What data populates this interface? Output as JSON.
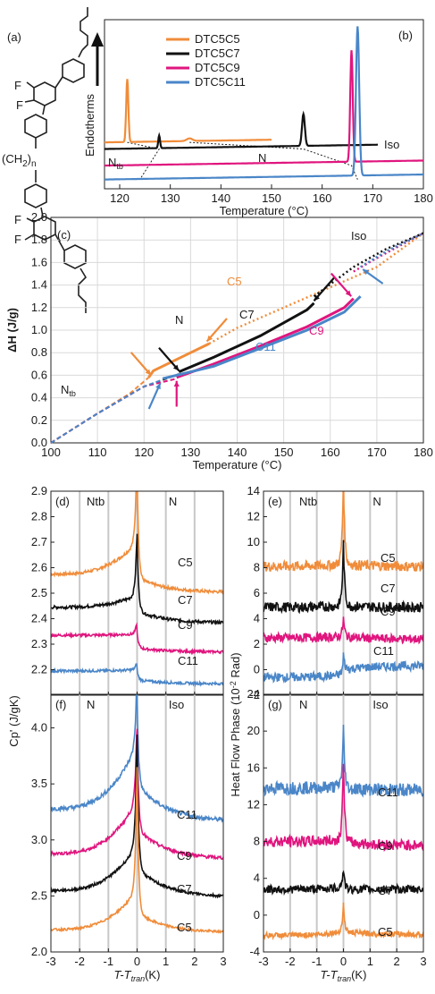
{
  "colors": {
    "C5": "#f08c3a",
    "C7": "#111111",
    "C9": "#e0157e",
    "C11": "#4a86c8",
    "vline": "#c8c8c8"
  },
  "molecule": {
    "label": "(a)",
    "F_top_1": "F",
    "F_top_2": "F",
    "spacer_open": "(CH",
    "spacer_sub": "2",
    "spacer_close": ")",
    "spacer_n": "n",
    "F_bot_1": "F",
    "F_bot_2": "F"
  },
  "chart_data": [
    {
      "id": "b",
      "panel_label": "(b)",
      "type": "line",
      "xlabel": "Temperature (°C)",
      "ylabel": "Endotherms",
      "xlim": [
        117,
        180
      ],
      "xticks": [
        120,
        130,
        140,
        150,
        160,
        170,
        180
      ],
      "legend": {
        "placement": "top-center",
        "entries": [
          "DTC5C5",
          "DTC5C7",
          "DTC5C9",
          "DTC5C11"
        ]
      },
      "annotations": {
        "Iso": "Iso",
        "N": "N",
        "Ntb": "N",
        "Ntb_sub": "tb"
      },
      "series": [
        {
          "name": "DTC5C5",
          "key": "C5",
          "x_range": [
            117,
            150
          ],
          "baseline": 0.7,
          "peaks": [
            [
              121.5,
              0.95,
              0.3
            ],
            [
              133.8,
              0.04,
              0.8
            ]
          ]
        },
        {
          "name": "DTC5C7",
          "key": "C7",
          "x_range": [
            117,
            171
          ],
          "baseline": 0.6,
          "peaks": [
            [
              127.8,
              0.19,
              0.25
            ],
            [
              156.3,
              0.48,
              0.4
            ]
          ]
        },
        {
          "name": "DTC5C9",
          "key": "C9",
          "x_range": [
            117,
            180
          ],
          "baseline": 0.35,
          "peaks": [
            [
              165.8,
              1.68,
              0.35
            ]
          ]
        },
        {
          "name": "DTC5C11",
          "key": "C11",
          "x_range": [
            117,
            180
          ],
          "baseline": 0.14,
          "peaks": [
            [
              167.0,
              2.25,
              0.45
            ]
          ]
        }
      ]
    },
    {
      "id": "c",
      "panel_label": "(c)",
      "type": "line",
      "xlabel": "Temperature (°C)",
      "ylabel": "ΔH (J/g)",
      "xlim": [
        100,
        180
      ],
      "ylim": [
        0,
        2.0
      ],
      "xticks": [
        100,
        110,
        120,
        130,
        140,
        150,
        160,
        170,
        180
      ],
      "yticks": [
        0.0,
        0.2,
        0.4,
        0.6,
        0.8,
        1.0,
        1.2,
        1.4,
        1.6,
        1.8,
        2.0
      ],
      "ytick_labels": [
        "0.0",
        "0.2",
        "0.4",
        "0.6",
        "0.8",
        "1.0",
        "1.2",
        "1.4",
        "1.6",
        "1.8",
        "2.0"
      ],
      "annotations": {
        "Iso": "Iso",
        "N": "N",
        "Ntb": "N",
        "Ntb_sub": "tb",
        "C5": "C5",
        "C7": "C7",
        "C9": "C9",
        "C11": "C11"
      },
      "series": [
        {
          "key": "C5",
          "dashed_x": [
            100,
            110,
            117,
            121
          ],
          "dashed_y": [
            0.0,
            0.26,
            0.44,
            0.58
          ],
          "solid_x": [
            121,
            122,
            126,
            130,
            134
          ],
          "solid_y": [
            0.58,
            0.64,
            0.72,
            0.8,
            0.88
          ],
          "dotted_x": [
            134,
            140,
            150,
            160,
            170,
            180
          ],
          "dotted_y": [
            0.88,
            1.02,
            1.2,
            1.38,
            1.56,
            1.86
          ]
        },
        {
          "key": "C7",
          "dashed_x": [
            100,
            110,
            120,
            127.5
          ],
          "dashed_y": [
            0.0,
            0.26,
            0.5,
            0.61
          ],
          "solid_x": [
            127.5,
            135,
            145,
            155,
            156.5
          ],
          "solid_y": [
            0.63,
            0.76,
            0.95,
            1.18,
            1.24
          ],
          "dotted_x": [
            156.5,
            165,
            172,
            180
          ],
          "dotted_y": [
            1.3,
            1.56,
            1.72,
            1.86
          ]
        },
        {
          "key": "C9",
          "dashed_x": [
            100,
            110,
            120,
            127
          ],
          "dashed_y": [
            0.0,
            0.26,
            0.5,
            0.57
          ],
          "solid_x": [
            127,
            135,
            145,
            155,
            163,
            165
          ],
          "solid_y": [
            0.58,
            0.7,
            0.86,
            1.03,
            1.2,
            1.28
          ],
          "dotted_x": [
            165,
            170,
            175,
            180
          ],
          "dotted_y": [
            1.52,
            1.64,
            1.75,
            1.86
          ]
        },
        {
          "key": "C11",
          "dashed_x": [
            100,
            110,
            120,
            124
          ],
          "dashed_y": [
            0.0,
            0.26,
            0.5,
            0.56
          ],
          "solid_x": [
            124,
            135,
            145,
            155,
            163,
            166.5
          ],
          "solid_y": [
            0.57,
            0.68,
            0.84,
            1.0,
            1.16,
            1.3
          ],
          "dotted_x": [
            166.5,
            172,
            180
          ],
          "dotted_y": [
            1.56,
            1.7,
            1.86
          ]
        }
      ],
      "arrows": [
        {
          "key": "C5",
          "x": 121.5,
          "y": 0.6,
          "dir": "down-right"
        },
        {
          "key": "C5",
          "x": 133.5,
          "y": 0.9,
          "dir": "down-left"
        },
        {
          "key": "C7",
          "x": 127.5,
          "y": 0.64,
          "dir": "down-right"
        },
        {
          "key": "C7",
          "x": 156.5,
          "y": 1.26,
          "dir": "down-left"
        },
        {
          "key": "C9",
          "x": 127.0,
          "y": 0.55,
          "dir": "up"
        },
        {
          "key": "C9",
          "x": 164.5,
          "y": 1.3,
          "dir": "down-right"
        },
        {
          "key": "C11",
          "x": 123.5,
          "y": 0.53,
          "dir": "up-left"
        },
        {
          "key": "C11",
          "x": 167.0,
          "y": 1.54,
          "dir": "up-right"
        }
      ]
    },
    {
      "id": "d",
      "panel_label": "(d)",
      "type": "line",
      "ylabel": "Cp' (J/gK)",
      "xlim": [
        -3,
        3
      ],
      "ylim": [
        2.1,
        2.9
      ],
      "yticks": [
        2.2,
        2.3,
        2.4,
        2.5,
        2.6,
        2.7,
        2.8,
        2.9
      ],
      "ytick_labels": [
        "2.2",
        "2.3",
        "2.4",
        "2.5",
        "2.6",
        "2.7",
        "2.8",
        "2.9"
      ],
      "phase_left": "Ntb",
      "phase_right": "N",
      "series": [
        {
          "name": "C5",
          "key": "C5",
          "left_start": 2.575,
          "left_end": 2.7,
          "right_start": 2.56,
          "right_end": 2.505,
          "peak": 0.45,
          "noise": 0.006
        },
        {
          "name": "C7",
          "key": "C7",
          "left_start": 2.445,
          "left_end": 2.49,
          "right_start": 2.43,
          "right_end": 2.385,
          "peak": 0.3,
          "noise": 0.006
        },
        {
          "name": "C9",
          "key": "C9",
          "left_start": 2.335,
          "left_end": 2.34,
          "right_start": 2.285,
          "right_end": 2.27,
          "peak": 0.06,
          "noise": 0.005
        },
        {
          "name": "C11",
          "key": "C11",
          "left_start": 2.195,
          "left_end": 2.2,
          "right_start": 2.16,
          "right_end": 2.145,
          "peak": 0.04,
          "noise": 0.005
        }
      ]
    },
    {
      "id": "e",
      "panel_label": "(e)",
      "type": "line",
      "ylabel": "",
      "xlim": [
        -3,
        3
      ],
      "ylim": [
        -2,
        14
      ],
      "yticks": [
        -2,
        0,
        2,
        4,
        6,
        8,
        10,
        12,
        14
      ],
      "ytick_labels": [
        "-2",
        "0",
        "2",
        "4",
        "6",
        "8",
        "10",
        "12",
        "14"
      ],
      "phase_left": "Ntb",
      "phase_right": "N",
      "series": [
        {
          "name": "C5",
          "key": "C5",
          "left_start": 8.1,
          "left_end": 8.3,
          "right_start": 8.3,
          "right_end": 8.1,
          "peak": 7.0,
          "noise": 0.4
        },
        {
          "name": "C7",
          "key": "C7",
          "left_start": 4.9,
          "left_end": 5.0,
          "right_start": 5.0,
          "right_end": 4.9,
          "peak": 5.0,
          "noise": 0.4
        },
        {
          "name": "C9",
          "key": "C9",
          "left_start": 2.5,
          "left_end": 2.6,
          "right_start": 2.6,
          "right_end": 2.4,
          "peak": 1.4,
          "noise": 0.35
        },
        {
          "name": "C11",
          "key": "C11",
          "left_start": -0.6,
          "left_end": -0.4,
          "right_start": 0.0,
          "right_end": 0.3,
          "peak": 1.2,
          "noise": 0.35
        }
      ]
    },
    {
      "id": "f",
      "panel_label": "(f)",
      "type": "line",
      "ylabel": "Cp' (J/gK)",
      "xlabel": "T-T",
      "xlabel_sub": "tran",
      "xlabel_unit": "(K)",
      "xlim": [
        -3,
        3
      ],
      "ylim": [
        2.0,
        4.3
      ],
      "xticks": [
        -3,
        -2,
        -1,
        0,
        1,
        2,
        3
      ],
      "yticks": [
        2.0,
        2.5,
        3.0,
        3.5,
        4.0
      ],
      "ytick_labels": [
        "2.0",
        "2.5",
        "3.0",
        "3.5",
        "4.0"
      ],
      "phase_left": "N",
      "phase_right": "Iso",
      "series": [
        {
          "name": "C11",
          "key": "C11",
          "left_start": 3.28,
          "left_end": 3.85,
          "right_start": 3.5,
          "right_end": 3.18,
          "peak": 0.8,
          "noise": 0.018
        },
        {
          "name": "C9",
          "key": "C9",
          "left_start": 2.88,
          "left_end": 3.35,
          "right_start": 3.1,
          "right_end": 2.84,
          "peak": 0.9,
          "noise": 0.015
        },
        {
          "name": "C7",
          "key": "C7",
          "left_start": 2.55,
          "left_end": 2.95,
          "right_start": 2.75,
          "right_end": 2.5,
          "peak": 1.2,
          "noise": 0.012
        },
        {
          "name": "C5",
          "key": "C5",
          "left_start": 2.2,
          "left_end": 2.55,
          "right_start": 2.35,
          "right_end": 2.18,
          "peak": 1.3,
          "noise": 0.01
        }
      ]
    },
    {
      "id": "g",
      "panel_label": "(g)",
      "type": "line",
      "ylabel": "Heat Flow Phase (10",
      "ylabel_sup": "-2",
      "ylabel_end": " Rad)",
      "xlabel": "T-T",
      "xlabel_sub": "tran",
      "xlabel_unit": "(K)",
      "xlim": [
        -3,
        3
      ],
      "ylim": [
        -4,
        24
      ],
      "xticks": [
        -3,
        -2,
        -1,
        0,
        1,
        2,
        3
      ],
      "yticks": [
        -4,
        0,
        4,
        8,
        12,
        16,
        20,
        24
      ],
      "ytick_labels": [
        "-4",
        "0",
        "4",
        "8",
        "12",
        "16",
        "20",
        "24"
      ],
      "phase_left": "N",
      "phase_right": "Iso",
      "series": [
        {
          "name": "C11",
          "key": "C11",
          "left_start": 13.8,
          "left_end": 14.0,
          "right_start": 13.8,
          "right_end": 13.6,
          "peak": 6.5,
          "noise": 0.7
        },
        {
          "name": "C9",
          "key": "C9",
          "left_start": 8.0,
          "left_end": 8.2,
          "right_start": 8.0,
          "right_end": 7.6,
          "peak": 9.0,
          "noise": 0.6
        },
        {
          "name": "C7",
          "key": "C7",
          "left_start": 2.8,
          "left_end": 3.0,
          "right_start": 2.8,
          "right_end": 2.8,
          "peak": 2.2,
          "noise": 0.45
        },
        {
          "name": "C5",
          "key": "C5",
          "left_start": -2.2,
          "left_end": -1.8,
          "right_start": -1.8,
          "right_end": -2.1,
          "peak": 3.0,
          "noise": 0.3
        }
      ]
    }
  ]
}
